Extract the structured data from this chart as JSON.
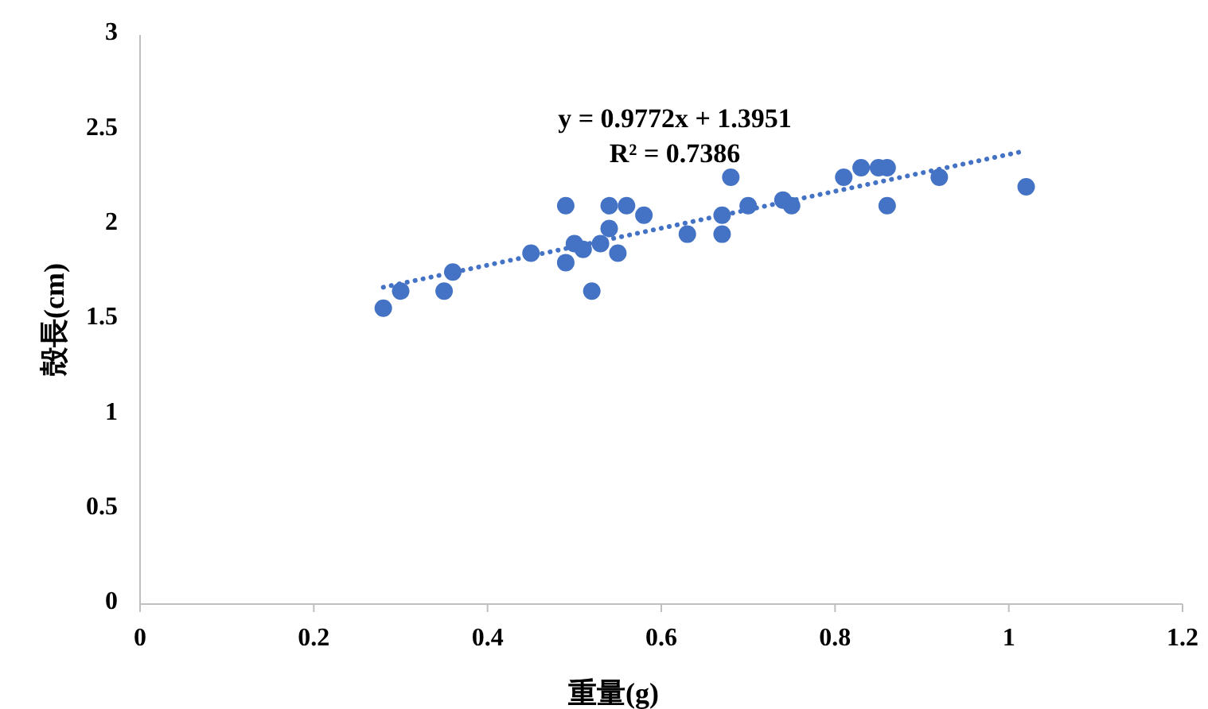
{
  "chart_data": {
    "type": "scatter",
    "xlabel": "重量(g)",
    "ylabel": "殻長(cm)",
    "xlim": [
      0,
      1.2
    ],
    "xticks": [
      0,
      {
        "value": 0.2,
        "label": "0.2"
      },
      {
        "value": 0.4,
        "label": "0.4"
      },
      {
        "value": 0.6,
        "label": "0.6"
      },
      {
        "value": 0.8,
        "label": "0.8"
      },
      1,
      {
        "value": 1.2,
        "label": "1.2"
      }
    ],
    "ylim": [
      0,
      3
    ],
    "yticks": [
      0,
      0.5,
      1,
      1.5,
      2,
      2.5,
      3
    ],
    "grid": false,
    "annotations": [
      "y = 0.9772x + 1.3951",
      "R² = 0.7386"
    ],
    "series": [
      {
        "color": "#4472c4",
        "marker": "circle",
        "x": [
          0.28,
          0.3,
          0.35,
          0.36,
          0.45,
          0.49,
          0.49,
          0.5,
          0.51,
          0.52,
          0.53,
          0.54,
          0.54,
          0.55,
          0.56,
          0.58,
          0.63,
          0.67,
          0.67,
          0.68,
          0.7,
          0.74,
          0.75,
          0.81,
          0.83,
          0.85,
          0.86,
          0.86,
          0.92,
          1.02
        ],
        "values": [
          1.56,
          1.65,
          1.65,
          1.75,
          1.85,
          1.8,
          2.1,
          1.9,
          1.87,
          1.65,
          1.9,
          1.98,
          2.1,
          1.85,
          2.1,
          2.05,
          1.95,
          1.95,
          2.05,
          2.25,
          2.1,
          2.13,
          2.1,
          2.25,
          2.3,
          2.3,
          2.3,
          2.1,
          2.25,
          2.2
        ]
      },
      {
        "type": "line",
        "color": "#4472c4",
        "line_style": "dotted",
        "marker": "none",
        "x": [
          0.28,
          1.02
        ],
        "values": [
          1.67,
          2.39
        ]
      }
    ]
  }
}
